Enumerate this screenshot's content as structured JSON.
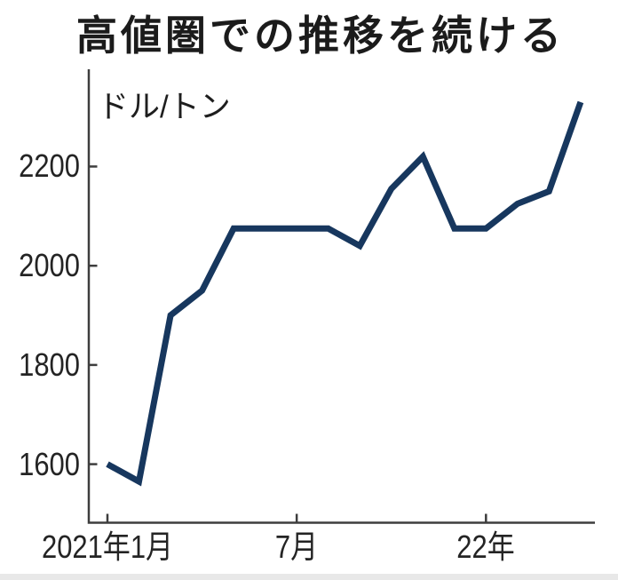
{
  "chart_data": {
    "type": "line",
    "title": "高値圏での推移を続ける",
    "unit_label": "ドル/トン",
    "x": [
      "2021-01",
      "2021-02",
      "2021-03",
      "2021-04",
      "2021-05",
      "2021-06",
      "2021-07",
      "2021-08",
      "2021-09",
      "2021-10",
      "2021-11",
      "2021-12",
      "2022-01",
      "2022-02",
      "2022-03",
      "2022-04"
    ],
    "values": [
      1600,
      1565,
      1900,
      1950,
      2075,
      2075,
      2075,
      2075,
      2040,
      2155,
      2220,
      2075,
      2075,
      2125,
      2150,
      2330
    ],
    "y_ticks": [
      1600,
      1800,
      2000,
      2200
    ],
    "x_ticks": [
      {
        "index": 0,
        "label": "2021年1月"
      },
      {
        "index": 6,
        "label": "7月"
      },
      {
        "index": 12,
        "label": "22年"
      }
    ],
    "ylim": [
      1482,
      2396
    ],
    "grid": false,
    "legend": "none",
    "colors": {
      "line": "#17375e",
      "axis": "#3d3d3d",
      "text": "#242424"
    }
  }
}
